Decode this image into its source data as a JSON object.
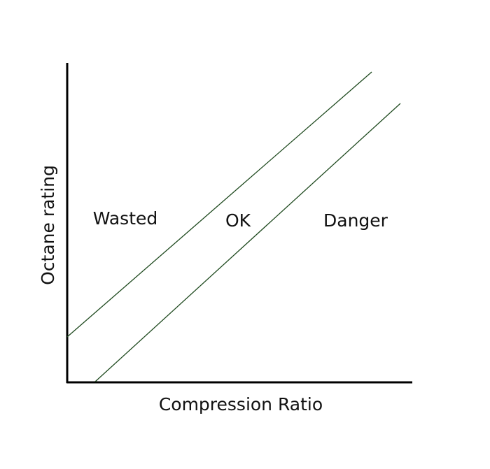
{
  "axes": {
    "x_label": "Compression Ratio",
    "y_label": "Octane rating"
  },
  "regions": [
    {
      "label": "Wasted"
    },
    {
      "label": "OK"
    },
    {
      "label": "Danger"
    }
  ]
}
